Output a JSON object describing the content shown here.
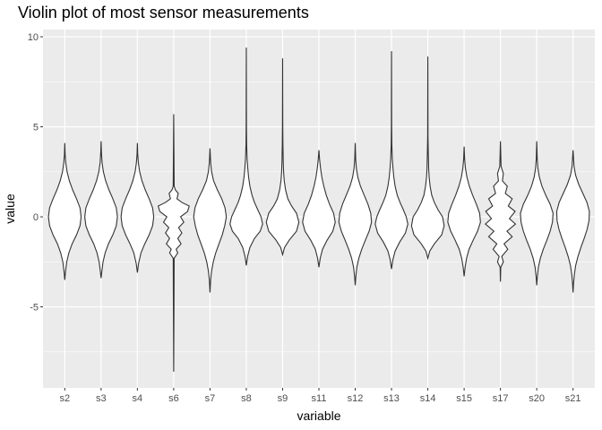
{
  "chart_data": {
    "type": "violin",
    "title": "Violin plot of most sensor measurements",
    "xlabel": "variable",
    "ylabel": "value",
    "categories": [
      "s2",
      "s3",
      "s4",
      "s6",
      "s7",
      "s8",
      "s9",
      "s11",
      "s12",
      "s13",
      "s14",
      "s15",
      "s17",
      "s20",
      "s21"
    ],
    "ylim": [
      -9.5,
      10.4
    ],
    "yticks": [
      -5,
      0,
      5,
      10
    ],
    "ytick_labels": [
      "-5",
      "0",
      "5",
      "10"
    ],
    "grid": true,
    "background": "#ebebeb",
    "violins": [
      {
        "category": "s2",
        "min": -3.5,
        "max": 4.1,
        "width": 0.45,
        "profile": [
          [
            -3.5,
            0.0
          ],
          [
            -3.0,
            0.05
          ],
          [
            -2.5,
            0.12
          ],
          [
            -2.0,
            0.25
          ],
          [
            -1.5,
            0.45
          ],
          [
            -1.0,
            0.72
          ],
          [
            -0.5,
            0.93
          ],
          [
            0.0,
            1.0
          ],
          [
            0.5,
            0.93
          ],
          [
            1.0,
            0.72
          ],
          [
            1.5,
            0.48
          ],
          [
            2.0,
            0.28
          ],
          [
            2.5,
            0.14
          ],
          [
            3.0,
            0.06
          ],
          [
            3.5,
            0.02
          ],
          [
            4.1,
            0.0
          ]
        ]
      },
      {
        "category": "s3",
        "min": -3.4,
        "max": 4.2,
        "width": 0.45,
        "profile": [
          [
            -3.4,
            0.0
          ],
          [
            -3.0,
            0.05
          ],
          [
            -2.5,
            0.12
          ],
          [
            -2.0,
            0.25
          ],
          [
            -1.5,
            0.45
          ],
          [
            -1.0,
            0.72
          ],
          [
            -0.5,
            0.93
          ],
          [
            0.0,
            1.0
          ],
          [
            0.5,
            0.93
          ],
          [
            1.0,
            0.72
          ],
          [
            1.5,
            0.48
          ],
          [
            2.0,
            0.28
          ],
          [
            2.5,
            0.14
          ],
          [
            3.0,
            0.06
          ],
          [
            3.6,
            0.02
          ],
          [
            4.2,
            0.0
          ]
        ]
      },
      {
        "category": "s4",
        "min": -3.1,
        "max": 4.1,
        "width": 0.45,
        "profile": [
          [
            -3.1,
            0.0
          ],
          [
            -2.6,
            0.07
          ],
          [
            -2.0,
            0.22
          ],
          [
            -1.5,
            0.45
          ],
          [
            -1.0,
            0.72
          ],
          [
            -0.5,
            0.93
          ],
          [
            0.0,
            1.0
          ],
          [
            0.5,
            0.93
          ],
          [
            1.0,
            0.72
          ],
          [
            1.5,
            0.48
          ],
          [
            2.0,
            0.28
          ],
          [
            2.5,
            0.14
          ],
          [
            3.0,
            0.06
          ],
          [
            3.5,
            0.02
          ],
          [
            4.1,
            0.0
          ]
        ]
      },
      {
        "category": "s6",
        "min": -8.6,
        "max": 5.7,
        "width": 0.45,
        "profile": [
          [
            -8.6,
            0.0
          ],
          [
            -2.3,
            0.03
          ],
          [
            -2.0,
            0.25
          ],
          [
            -1.8,
            0.15
          ],
          [
            -1.5,
            0.45
          ],
          [
            -1.2,
            0.25
          ],
          [
            -0.9,
            0.5
          ],
          [
            -0.6,
            0.3
          ],
          [
            -0.3,
            0.62
          ],
          [
            0.0,
            0.42
          ],
          [
            0.3,
            0.85
          ],
          [
            0.6,
            0.95
          ],
          [
            0.8,
            0.5
          ],
          [
            1.0,
            0.2
          ],
          [
            1.3,
            0.28
          ],
          [
            1.5,
            0.1
          ],
          [
            1.7,
            0.03
          ],
          [
            5.7,
            0.0
          ]
        ]
      },
      {
        "category": "s7",
        "min": -4.2,
        "max": 3.8,
        "width": 0.45,
        "profile": [
          [
            -4.2,
            0.0
          ],
          [
            -3.5,
            0.04
          ],
          [
            -3.0,
            0.1
          ],
          [
            -2.5,
            0.2
          ],
          [
            -2.0,
            0.35
          ],
          [
            -1.5,
            0.55
          ],
          [
            -1.0,
            0.75
          ],
          [
            -0.5,
            0.9
          ],
          [
            0.0,
            1.0
          ],
          [
            0.5,
            0.92
          ],
          [
            1.0,
            0.72
          ],
          [
            1.5,
            0.45
          ],
          [
            2.0,
            0.22
          ],
          [
            2.5,
            0.1
          ],
          [
            3.0,
            0.04
          ],
          [
            3.8,
            0.0
          ]
        ]
      },
      {
        "category": "s8",
        "min": -2.7,
        "max": 9.4,
        "width": 0.45,
        "profile": [
          [
            -2.7,
            0.0
          ],
          [
            -2.2,
            0.08
          ],
          [
            -1.7,
            0.22
          ],
          [
            -1.2,
            0.5
          ],
          [
            -0.8,
            0.85
          ],
          [
            -0.4,
            1.0
          ],
          [
            0.0,
            0.9
          ],
          [
            0.4,
            0.7
          ],
          [
            0.8,
            0.5
          ],
          [
            1.2,
            0.35
          ],
          [
            1.7,
            0.22
          ],
          [
            2.2,
            0.14
          ],
          [
            2.7,
            0.09
          ],
          [
            3.2,
            0.05
          ],
          [
            4.0,
            0.02
          ],
          [
            5.0,
            0.01
          ],
          [
            9.4,
            0.0
          ]
        ]
      },
      {
        "category": "s9",
        "min": -2.1,
        "max": 8.8,
        "width": 0.45,
        "profile": [
          [
            -2.1,
            0.0
          ],
          [
            -1.7,
            0.12
          ],
          [
            -1.3,
            0.4
          ],
          [
            -0.8,
            0.85
          ],
          [
            -0.3,
            1.0
          ],
          [
            0.2,
            0.85
          ],
          [
            0.6,
            0.55
          ],
          [
            1.0,
            0.32
          ],
          [
            1.5,
            0.18
          ],
          [
            2.0,
            0.1
          ],
          [
            2.5,
            0.06
          ],
          [
            3.0,
            0.04
          ],
          [
            4.0,
            0.02
          ],
          [
            5.0,
            0.01
          ],
          [
            8.8,
            0.0
          ]
        ]
      },
      {
        "category": "s11",
        "min": -2.8,
        "max": 3.7,
        "width": 0.45,
        "profile": [
          [
            -2.8,
            0.0
          ],
          [
            -2.3,
            0.08
          ],
          [
            -1.8,
            0.22
          ],
          [
            -1.3,
            0.5
          ],
          [
            -0.8,
            0.85
          ],
          [
            -0.3,
            1.0
          ],
          [
            0.2,
            0.9
          ],
          [
            0.7,
            0.65
          ],
          [
            1.2,
            0.45
          ],
          [
            1.7,
            0.3
          ],
          [
            2.2,
            0.18
          ],
          [
            2.7,
            0.1
          ],
          [
            3.2,
            0.04
          ],
          [
            3.7,
            0.0
          ]
        ]
      },
      {
        "category": "s12",
        "min": -3.8,
        "max": 4.1,
        "width": 0.45,
        "profile": [
          [
            -3.8,
            0.0
          ],
          [
            -3.3,
            0.04
          ],
          [
            -2.8,
            0.1
          ],
          [
            -2.3,
            0.22
          ],
          [
            -1.8,
            0.4
          ],
          [
            -1.3,
            0.62
          ],
          [
            -0.8,
            0.85
          ],
          [
            -0.3,
            1.0
          ],
          [
            0.2,
            0.95
          ],
          [
            0.7,
            0.78
          ],
          [
            1.2,
            0.55
          ],
          [
            1.7,
            0.32
          ],
          [
            2.2,
            0.16
          ],
          [
            2.7,
            0.07
          ],
          [
            3.2,
            0.03
          ],
          [
            4.1,
            0.0
          ]
        ]
      },
      {
        "category": "s13",
        "min": -2.9,
        "max": 9.2,
        "width": 0.45,
        "profile": [
          [
            -2.9,
            0.0
          ],
          [
            -2.4,
            0.08
          ],
          [
            -1.9,
            0.22
          ],
          [
            -1.4,
            0.5
          ],
          [
            -0.9,
            0.85
          ],
          [
            -0.4,
            1.0
          ],
          [
            0.0,
            0.9
          ],
          [
            0.4,
            0.72
          ],
          [
            0.8,
            0.52
          ],
          [
            1.2,
            0.35
          ],
          [
            1.7,
            0.22
          ],
          [
            2.2,
            0.14
          ],
          [
            2.7,
            0.09
          ],
          [
            3.2,
            0.05
          ],
          [
            4.0,
            0.02
          ],
          [
            5.0,
            0.01
          ],
          [
            9.2,
            0.0
          ]
        ]
      },
      {
        "category": "s14",
        "min": -2.3,
        "max": 8.9,
        "width": 0.45,
        "profile": [
          [
            -2.3,
            0.0
          ],
          [
            -1.9,
            0.12
          ],
          [
            -1.5,
            0.4
          ],
          [
            -1.0,
            0.85
          ],
          [
            -0.5,
            1.0
          ],
          [
            0.0,
            0.9
          ],
          [
            0.4,
            0.62
          ],
          [
            0.8,
            0.4
          ],
          [
            1.2,
            0.24
          ],
          [
            1.7,
            0.14
          ],
          [
            2.2,
            0.08
          ],
          [
            2.7,
            0.05
          ],
          [
            3.5,
            0.03
          ],
          [
            4.5,
            0.01
          ],
          [
            8.9,
            0.0
          ]
        ]
      },
      {
        "category": "s15",
        "min": -3.3,
        "max": 3.9,
        "width": 0.45,
        "profile": [
          [
            -3.3,
            0.0
          ],
          [
            -2.8,
            0.06
          ],
          [
            -2.3,
            0.15
          ],
          [
            -1.8,
            0.3
          ],
          [
            -1.3,
            0.55
          ],
          [
            -0.8,
            0.82
          ],
          [
            -0.3,
            1.0
          ],
          [
            0.2,
            0.95
          ],
          [
            0.7,
            0.75
          ],
          [
            1.2,
            0.52
          ],
          [
            1.7,
            0.32
          ],
          [
            2.2,
            0.17
          ],
          [
            2.7,
            0.08
          ],
          [
            3.2,
            0.03
          ],
          [
            3.9,
            0.0
          ]
        ]
      },
      {
        "category": "s17",
        "min": -3.6,
        "max": 4.2,
        "width": 0.45,
        "profile": [
          [
            -3.6,
            0.0
          ],
          [
            -2.8,
            0.02
          ],
          [
            -2.5,
            0.18
          ],
          [
            -2.2,
            0.08
          ],
          [
            -1.8,
            0.45
          ],
          [
            -1.5,
            0.22
          ],
          [
            -1.1,
            0.72
          ],
          [
            -0.8,
            0.4
          ],
          [
            -0.4,
            0.92
          ],
          [
            -0.1,
            0.55
          ],
          [
            0.3,
            0.9
          ],
          [
            0.6,
            0.48
          ],
          [
            1.0,
            0.72
          ],
          [
            1.3,
            0.3
          ],
          [
            1.7,
            0.42
          ],
          [
            2.0,
            0.12
          ],
          [
            2.4,
            0.18
          ],
          [
            2.8,
            0.04
          ],
          [
            4.2,
            0.0
          ]
        ]
      },
      {
        "category": "s20",
        "min": -3.8,
        "max": 4.2,
        "width": 0.45,
        "profile": [
          [
            -3.8,
            0.0
          ],
          [
            -3.3,
            0.04
          ],
          [
            -2.8,
            0.1
          ],
          [
            -2.3,
            0.22
          ],
          [
            -1.8,
            0.4
          ],
          [
            -1.3,
            0.62
          ],
          [
            -0.8,
            0.82
          ],
          [
            -0.3,
            0.96
          ],
          [
            0.2,
            1.0
          ],
          [
            0.7,
            0.82
          ],
          [
            1.2,
            0.55
          ],
          [
            1.7,
            0.32
          ],
          [
            2.2,
            0.16
          ],
          [
            2.7,
            0.07
          ],
          [
            3.2,
            0.03
          ],
          [
            4.2,
            0.0
          ]
        ]
      },
      {
        "category": "s21",
        "min": -4.2,
        "max": 3.7,
        "width": 0.45,
        "profile": [
          [
            -4.2,
            0.0
          ],
          [
            -3.7,
            0.03
          ],
          [
            -3.2,
            0.08
          ],
          [
            -2.7,
            0.16
          ],
          [
            -2.2,
            0.3
          ],
          [
            -1.7,
            0.48
          ],
          [
            -1.2,
            0.68
          ],
          [
            -0.7,
            0.86
          ],
          [
            -0.2,
            0.98
          ],
          [
            0.3,
            1.0
          ],
          [
            0.8,
            0.85
          ],
          [
            1.3,
            0.6
          ],
          [
            1.8,
            0.35
          ],
          [
            2.3,
            0.16
          ],
          [
            2.8,
            0.06
          ],
          [
            3.7,
            0.0
          ]
        ]
      }
    ]
  }
}
